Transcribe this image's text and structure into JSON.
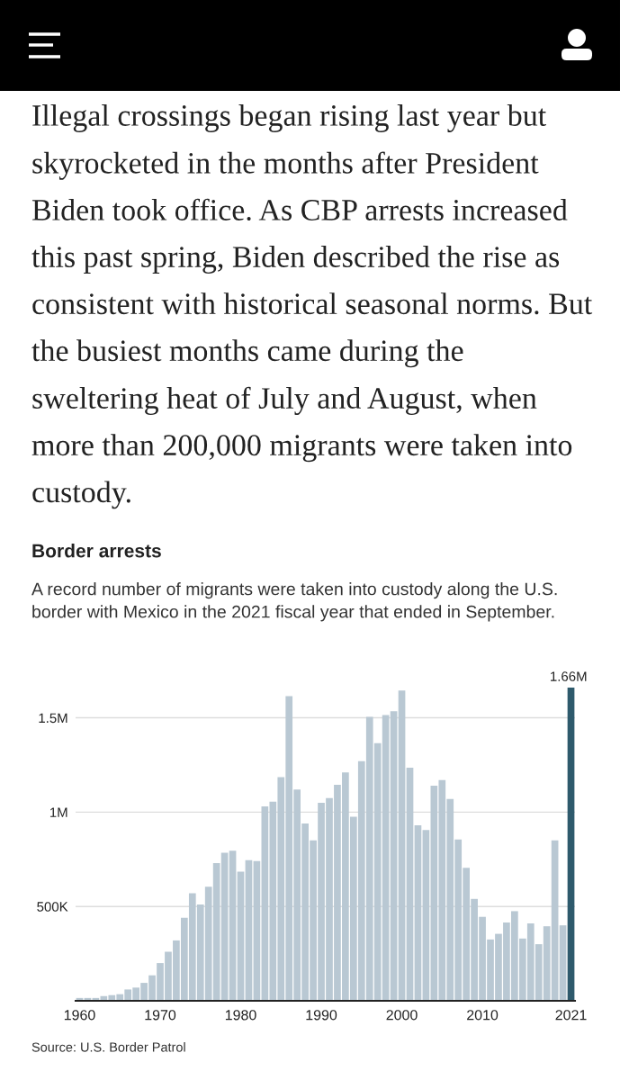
{
  "chart_data": {
    "type": "bar",
    "title": "Border arrests",
    "subtitle": "A record number of migrants were taken into custody along the U.S. border with Mexico in the 2021 fiscal year that ended in September.",
    "categories": [
      "1960",
      null,
      null,
      null,
      null,
      null,
      null,
      null,
      null,
      null,
      "1970",
      null,
      null,
      null,
      null,
      null,
      null,
      null,
      null,
      null,
      "1980",
      null,
      null,
      null,
      null,
      null,
      null,
      null,
      null,
      null,
      "1990",
      null,
      null,
      null,
      null,
      null,
      null,
      null,
      null,
      null,
      "2000",
      null,
      null,
      null,
      null,
      null,
      null,
      null,
      null,
      null,
      "2010",
      null,
      null,
      null,
      null,
      null,
      null,
      null,
      null,
      null,
      null,
      "2021"
    ],
    "values": [
      15000,
      15000,
      15000,
      25000,
      30000,
      35000,
      60000,
      70000,
      95000,
      135000,
      200000,
      260000,
      320000,
      440000,
      570000,
      510000,
      605000,
      730000,
      785000,
      795000,
      685000,
      745000,
      740000,
      1030000,
      1055000,
      1185000,
      1615000,
      1120000,
      940000,
      850000,
      1050000,
      1075000,
      1145000,
      1210000,
      975000,
      1270000,
      1505000,
      1365000,
      1515000,
      1535000,
      1645000,
      1235000,
      930000,
      905000,
      1140000,
      1170000,
      1070000,
      855000,
      705000,
      540000,
      445000,
      325000,
      355000,
      415000,
      475000,
      330000,
      410000,
      300000,
      395000,
      850000,
      400000,
      1660000
    ],
    "colors": [
      "#b9c8d3",
      "#b9c8d3",
      "#b9c8d3",
      "#b9c8d3",
      "#b9c8d3",
      "#b9c8d3",
      "#b9c8d3",
      "#b9c8d3",
      "#b9c8d3",
      "#b9c8d3",
      "#b9c8d3",
      "#b9c8d3",
      "#b9c8d3",
      "#b9c8d3",
      "#b9c8d3",
      "#b9c8d3",
      "#b9c8d3",
      "#b9c8d3",
      "#b9c8d3",
      "#b9c8d3",
      "#b9c8d3",
      "#b9c8d3",
      "#b9c8d3",
      "#b9c8d3",
      "#b9c8d3",
      "#b9c8d3",
      "#b9c8d3",
      "#b9c8d3",
      "#b9c8d3",
      "#b9c8d3",
      "#b9c8d3",
      "#b9c8d3",
      "#b9c8d3",
      "#b9c8d3",
      "#b9c8d3",
      "#b9c8d3",
      "#b9c8d3",
      "#b9c8d3",
      "#b9c8d3",
      "#b9c8d3",
      "#b9c8d3",
      "#b9c8d3",
      "#b9c8d3",
      "#b9c8d3",
      "#b9c8d3",
      "#b9c8d3",
      "#b9c8d3",
      "#b9c8d3",
      "#b9c8d3",
      "#b9c8d3",
      "#b9c8d3",
      "#b9c8d3",
      "#b9c8d3",
      "#b9c8d3",
      "#b9c8d3",
      "#b9c8d3",
      "#b9c8d3",
      "#b9c8d3",
      "#b9c8d3",
      "#b9c8d3",
      "#b9c8d3",
      "#2e5a6c"
    ],
    "value_labels": [
      null,
      null,
      null,
      null,
      null,
      null,
      null,
      null,
      null,
      null,
      null,
      null,
      null,
      null,
      null,
      null,
      null,
      null,
      null,
      null,
      null,
      null,
      null,
      null,
      null,
      null,
      null,
      null,
      null,
      null,
      null,
      null,
      null,
      null,
      null,
      null,
      null,
      null,
      null,
      null,
      null,
      null,
      null,
      null,
      null,
      null,
      null,
      null,
      null,
      null,
      null,
      null,
      null,
      null,
      null,
      null,
      null,
      null,
      null,
      null,
      null,
      "1.66M"
    ],
    "ylim": [
      0,
      1660000
    ],
    "yticks": [
      {
        "value": 500000,
        "label": "500K"
      },
      {
        "value": 1000000,
        "label": "1M"
      },
      {
        "value": 1500000,
        "label": "1.5M"
      }
    ],
    "grid": "y",
    "annotations": [
      "Illegal crossings began rising last year but skyrocketed in the months after President Biden took office. As CBP arrests increased this past spring, Biden described the rise as consistent with historical seasonal norms. But the busiest months came during the sweltering heat of July and August, when more than 200,000 migrants were taken into custody.",
      "Source: U.S. Border Patrol"
    ]
  }
}
